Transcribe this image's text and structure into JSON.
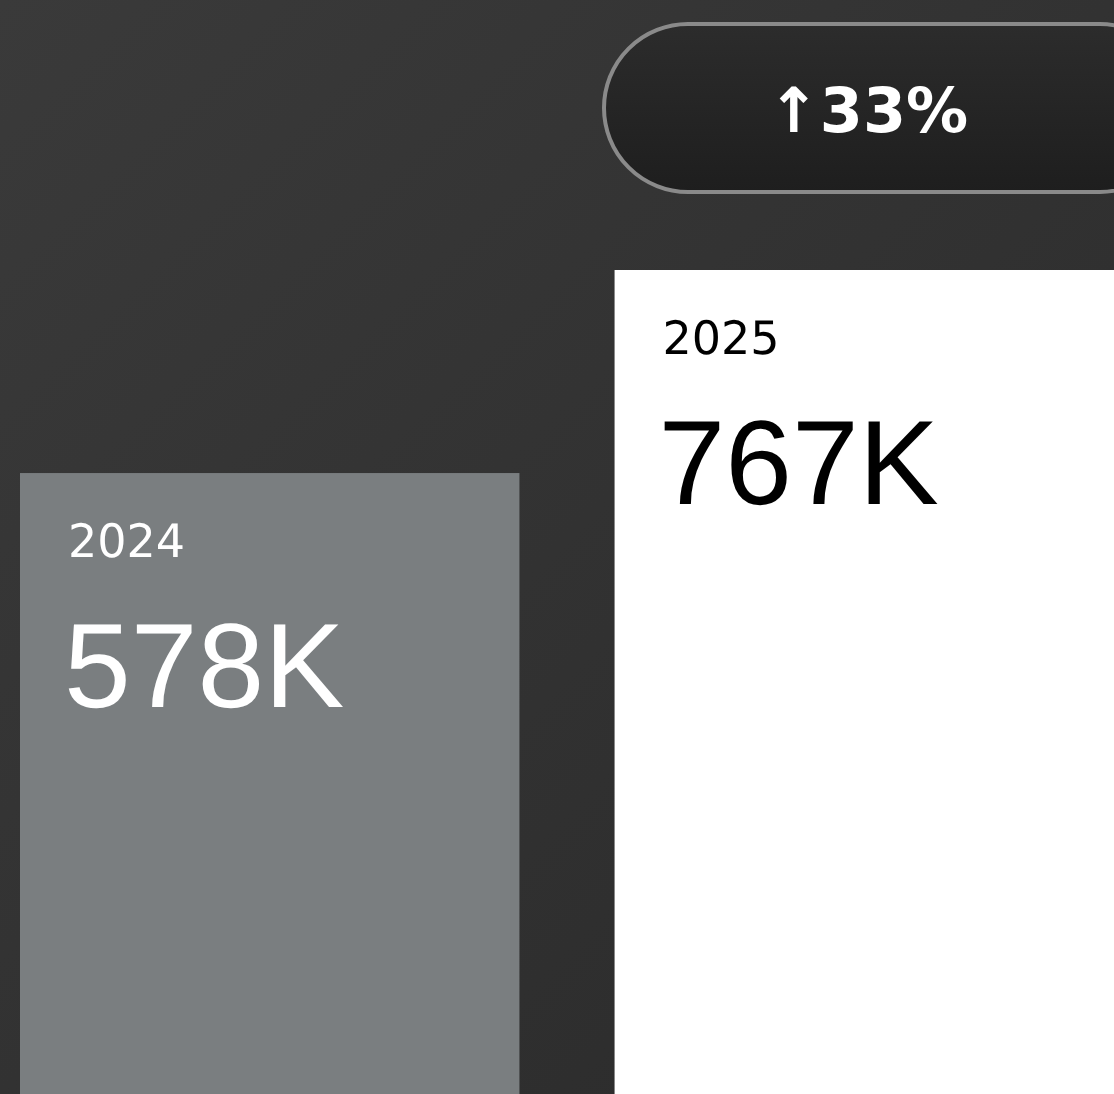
{
  "chart_data": {
    "type": "bar",
    "categories": [
      "2024",
      "2025"
    ],
    "values": [
      578,
      767
    ],
    "colors": [
      "#7a7e80",
      "#ffffff"
    ],
    "value_labels": [
      "578K",
      "767K"
    ],
    "annotations": [
      "↑33%"
    ]
  }
}
